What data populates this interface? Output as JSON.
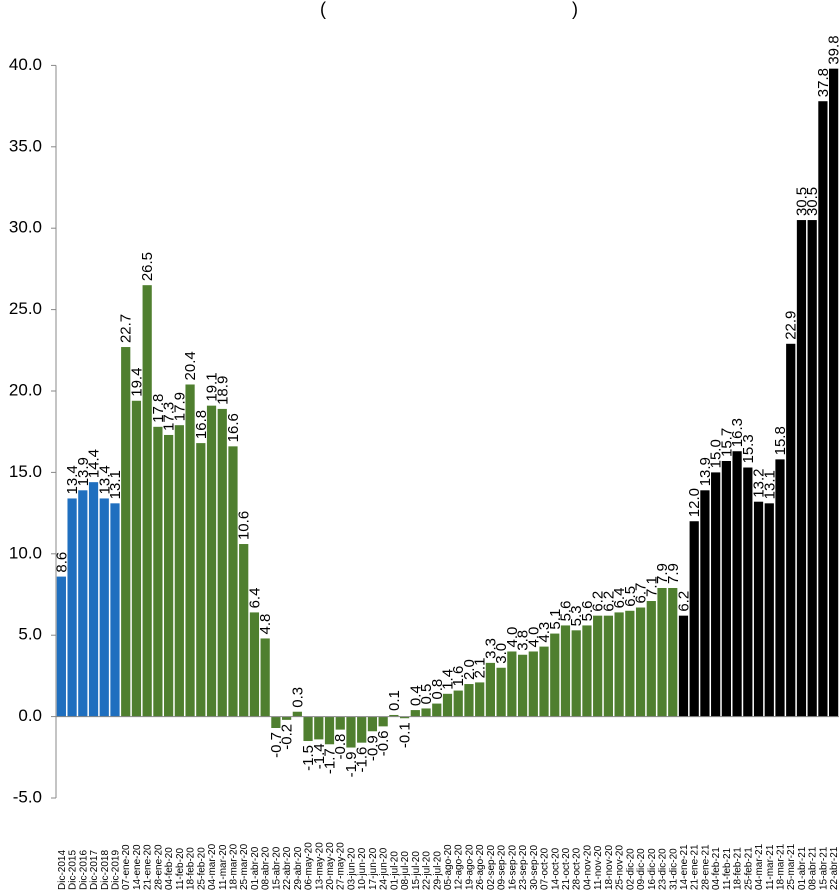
{
  "chart_data": {
    "type": "bar",
    "title": "(",
    "title_end": ")",
    "xlabel": "",
    "ylabel": "",
    "ylim": [
      -5,
      40
    ],
    "yticks": [
      "40.0",
      "35.0",
      "30.0",
      "25.0",
      "20.0",
      "15.0",
      "10.0",
      "5.0",
      "0.0",
      "-5.0"
    ],
    "colors": {
      "blue": "#1f6fbf",
      "green": "#4f7f2f",
      "black": "#000000"
    },
    "categories": [
      "Dic-2014",
      "Dic-2015",
      "Dic-2016",
      "Dic-2017",
      "Dic-2018",
      "Dic-2019",
      "07-ene-20",
      "14-ene-20",
      "21-ene-20",
      "28-ene-20",
      "04-feb-20",
      "11-feb-20",
      "18-feb-20",
      "25-feb-20",
      "04-mar-20",
      "11-mar-20",
      "18-mar-20",
      "25-mar-20",
      "01-abr-20",
      "08-abr-20",
      "15-abr-20",
      "22-abr-20",
      "29-abr-20",
      "06-may-20",
      "13-may-20",
      "20-may-20",
      "27-may-20",
      "03-jun-20",
      "10-jun-20",
      "17-jun-20",
      "24-jun-20",
      "01-jul-20",
      "08-jul-20",
      "15-jul-20",
      "22-jul-20",
      "29-jul-20",
      "05-ago-20",
      "12-ago-20",
      "19-ago-20",
      "26-ago-20",
      "02-sep-20",
      "09-sep-20",
      "16-sep-20",
      "23-sep-20",
      "30-sep-20",
      "07-oct-20",
      "14-oct-20",
      "21-oct-20",
      "28-oct-20",
      "04-nov-20",
      "11-nov-20",
      "18-nov-20",
      "25-nov-20",
      "02-dic-20",
      "09-dic-20",
      "16-dic-20",
      "23-dic-20",
      "31-dic-20",
      "14-ene-21",
      "21-ene-21",
      "28-ene-21",
      "04-feb-21",
      "11-feb-21",
      "18-feb-21",
      "25-feb-21",
      "04-mar-21",
      "11-mar-21",
      "18-mar-21",
      "25-mar-21",
      "01-abr-21",
      "08-abr-21",
      "15-abr-21",
      "22-abr-21"
    ],
    "values": [
      8.6,
      13.4,
      13.9,
      14.4,
      13.4,
      13.1,
      22.7,
      19.4,
      26.5,
      17.8,
      17.3,
      17.9,
      20.4,
      16.8,
      19.1,
      18.9,
      16.6,
      10.6,
      6.4,
      4.8,
      -0.7,
      -0.2,
      0.3,
      -1.5,
      -1.4,
      -1.7,
      -0.8,
      -1.9,
      -1.6,
      -0.9,
      -0.6,
      0.1,
      -0.1,
      0.4,
      0.5,
      0.8,
      1.4,
      1.6,
      2.0,
      2.1,
      3.3,
      3.0,
      4.0,
      3.8,
      4.0,
      4.3,
      5.1,
      5.6,
      5.3,
      5.6,
      6.2,
      6.2,
      6.4,
      6.5,
      6.7,
      7.1,
      7.9,
      7.9,
      6.2,
      12.0,
      13.9,
      15.0,
      15.7,
      16.3,
      15.3,
      13.2,
      13.1,
      15.8,
      22.9,
      30.5,
      30.5,
      37.8,
      39.8
    ],
    "value_labels": [
      "8.6",
      "13.4",
      "13.9",
      "14.4",
      "13.4",
      "13.1",
      "22.7",
      "19.4",
      "26.5",
      "17.8",
      "17.3",
      "17.9",
      "20.4",
      "16.8",
      "19.1",
      "18.9",
      "16.6",
      "10.6",
      "6.4",
      "4.8",
      "-0.7",
      "-0.2",
      "0.3",
      "-1.5",
      "-1.4",
      "-1.7",
      "-0.8",
      "-1.9",
      "-1.6",
      "-0.9",
      "-0.6",
      "0.1",
      "-0.1",
      "0.4",
      "0.5",
      "0.8",
      "1.4",
      "1.6",
      "2.0",
      "2.1",
      "3.3",
      "3.0",
      "4.0",
      "3.8",
      "4.0",
      "4.3",
      "5.1",
      "5.6",
      "5.3",
      "5.6",
      "6.2",
      "6.2",
      "6.4",
      "6.5",
      "6.7",
      "7.1",
      "7.9",
      "7.9",
      "6.2",
      "12.0",
      "13.9",
      "15.0",
      "15.7",
      "16.3",
      "15.3",
      "13.2",
      "13.1",
      "15.8",
      "22.9",
      "30.5",
      "30.5",
      "37.8",
      "39.8"
    ],
    "bar_colors": [
      "blue",
      "blue",
      "blue",
      "blue",
      "blue",
      "blue",
      "green",
      "green",
      "green",
      "green",
      "green",
      "green",
      "green",
      "green",
      "green",
      "green",
      "green",
      "green",
      "green",
      "green",
      "green",
      "green",
      "green",
      "green",
      "green",
      "green",
      "green",
      "green",
      "green",
      "green",
      "green",
      "green",
      "green",
      "green",
      "green",
      "green",
      "green",
      "green",
      "green",
      "green",
      "green",
      "green",
      "green",
      "green",
      "green",
      "green",
      "green",
      "green",
      "green",
      "green",
      "green",
      "green",
      "green",
      "green",
      "green",
      "green",
      "green",
      "green",
      "black",
      "black",
      "black",
      "black",
      "black",
      "black",
      "black",
      "black",
      "black",
      "black",
      "black",
      "black",
      "black",
      "black",
      "black"
    ],
    "grid": false,
    "legend": "none"
  }
}
